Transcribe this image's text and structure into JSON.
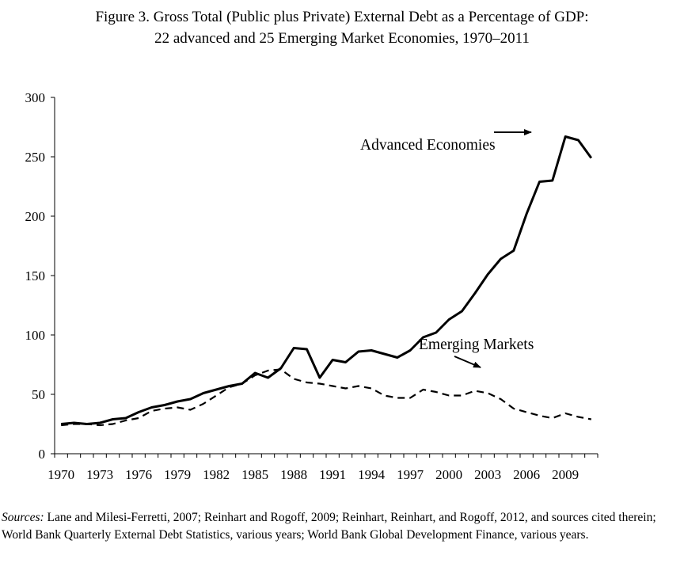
{
  "title": {
    "line1": "Figure 3. Gross Total (Public plus Private) External Debt as a Percentage of GDP:",
    "line2": "22 advanced and 25 Emerging Market Economies, 1970–2011"
  },
  "sources": {
    "lead": "Sources:",
    "text": " Lane and Milesi-Ferretti, 2007; Reinhart and Rogoff, 2009; Reinhart, Reinhart, and Rogoff, 2012, and sources cited therein; World Bank Quarterly External Debt Statistics, various years; World Bank Global Development Finance, various years."
  },
  "chart_data": {
    "type": "line",
    "title": "Figure 3. Gross Total (Public plus Private) External Debt as a Percentage of GDP: 22 advanced and 25 Emerging Market Economies, 1970–2011",
    "xlabel": "",
    "ylabel": "",
    "x": [
      1970,
      1971,
      1972,
      1973,
      1974,
      1975,
      1976,
      1977,
      1978,
      1979,
      1980,
      1981,
      1982,
      1983,
      1984,
      1985,
      1986,
      1987,
      1988,
      1989,
      1990,
      1991,
      1992,
      1993,
      1994,
      1995,
      1996,
      1997,
      1998,
      1999,
      2000,
      2001,
      2002,
      2003,
      2004,
      2005,
      2006,
      2007,
      2008,
      2009,
      2010,
      2011
    ],
    "xticks": [
      "1970",
      "1973",
      "1976",
      "1979",
      "1982",
      "1985",
      "1988",
      "1991",
      "1994",
      "1997",
      "2000",
      "2003",
      "2006",
      "2009"
    ],
    "ylim": [
      0,
      300
    ],
    "yticks": [
      0,
      50,
      100,
      150,
      200,
      250,
      300
    ],
    "grid": false,
    "legend": "none (inline labels with arrows)",
    "series": [
      {
        "name": "Advanced Economies",
        "style": "solid",
        "values": [
          25,
          26,
          25,
          26,
          29,
          30,
          35,
          39,
          41,
          44,
          46,
          51,
          54,
          57,
          59,
          68,
          64,
          72,
          89,
          88,
          64,
          79,
          77,
          86,
          87,
          84,
          81,
          87,
          98,
          102,
          113,
          120,
          135,
          151,
          164,
          171,
          202,
          229,
          230,
          267,
          264,
          249
        ]
      },
      {
        "name": "Emerging Markets",
        "style": "dashed",
        "values": [
          24,
          25,
          25,
          24,
          25,
          28,
          30,
          36,
          38,
          39,
          37,
          42,
          49,
          56,
          59,
          66,
          70,
          71,
          63,
          60,
          59,
          57,
          55,
          57,
          55,
          49,
          47,
          47,
          54,
          52,
          49,
          49,
          53,
          51,
          46,
          38,
          35,
          32,
          30,
          34,
          31,
          29
        ]
      }
    ],
    "annotations": [
      {
        "text": "Advanced Economies",
        "target_series": "Advanced Economies"
      },
      {
        "text": "Emerging Markets",
        "target_series": "Emerging Markets"
      }
    ]
  }
}
